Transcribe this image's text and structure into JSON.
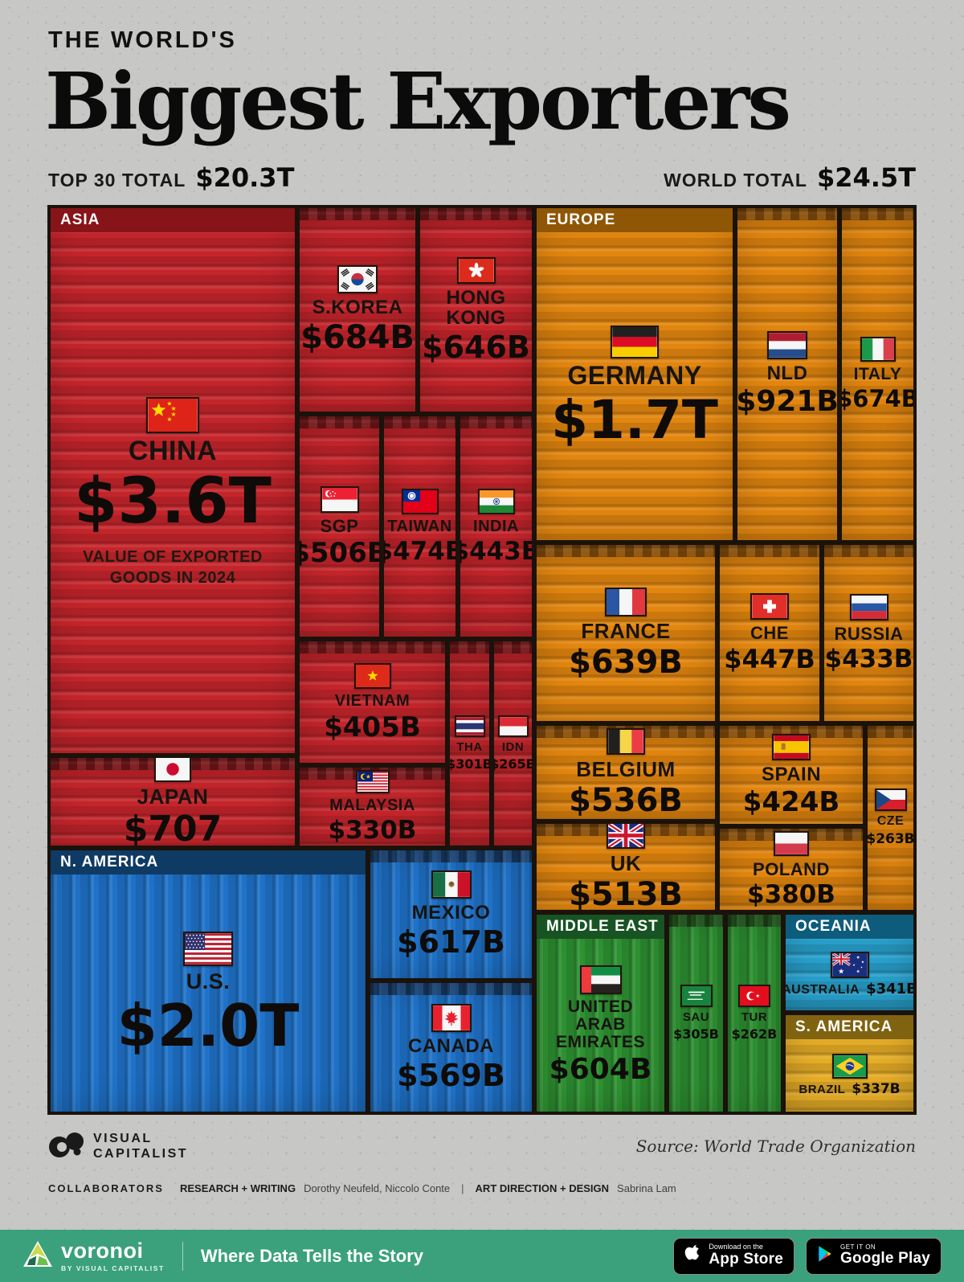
{
  "header": {
    "kicker": "THE WORLD'S",
    "title": "Biggest Exporters",
    "left_stat_label": "TOP 30 TOTAL",
    "left_stat_value": "$20.3T",
    "right_stat_label": "WORLD TOTAL",
    "right_stat_value": "$24.5T"
  },
  "regions": [
    {
      "id": "asia",
      "label": "ASIA",
      "countries": [
        {
          "id": "china",
          "label": "CHINA",
          "value": "$3.6T",
          "note": "VALUE OF EXPORTED GOODS IN 2024",
          "flag": "china"
        },
        {
          "id": "skorea",
          "label": "S.KOREA",
          "value": "$684B",
          "flag": "south-korea"
        },
        {
          "id": "hongkong",
          "label": "HONG KONG",
          "value": "$646B",
          "flag": "hong-kong"
        },
        {
          "id": "sgp",
          "label": "SGP",
          "value": "$506B",
          "flag": "singapore"
        },
        {
          "id": "taiwan",
          "label": "TAIWAN",
          "value": "$474B",
          "flag": "taiwan"
        },
        {
          "id": "india",
          "label": "INDIA",
          "value": "$443B",
          "flag": "india"
        },
        {
          "id": "vietnam",
          "label": "VIETNAM",
          "value": "$405B",
          "flag": "vietnam"
        },
        {
          "id": "malaysia",
          "label": "MALAYSIA",
          "value": "$330B",
          "flag": "malaysia"
        },
        {
          "id": "tha",
          "label": "THA",
          "value": "$301B",
          "flag": "thailand"
        },
        {
          "id": "idn",
          "label": "IDN",
          "value": "$265B",
          "flag": "indonesia"
        },
        {
          "id": "japan",
          "label": "JAPAN",
          "value": "$707",
          "flag": "japan"
        }
      ]
    },
    {
      "id": "europe",
      "label": "EUROPE",
      "countries": [
        {
          "id": "germany",
          "label": "GERMANY",
          "value": "$1.7T",
          "flag": "germany"
        },
        {
          "id": "nld",
          "label": "NLD",
          "value": "$921B",
          "flag": "netherlands"
        },
        {
          "id": "italy",
          "label": "ITALY",
          "value": "$674B",
          "flag": "italy"
        },
        {
          "id": "france",
          "label": "FRANCE",
          "value": "$639B",
          "flag": "france"
        },
        {
          "id": "che",
          "label": "CHE",
          "value": "$447B",
          "flag": "switzerland"
        },
        {
          "id": "russia",
          "label": "RUSSIA",
          "value": "$433B",
          "flag": "russia"
        },
        {
          "id": "belgium",
          "label": "BELGIUM",
          "value": "$536B",
          "flag": "belgium"
        },
        {
          "id": "spain",
          "label": "SPAIN",
          "value": "$424B",
          "flag": "spain"
        },
        {
          "id": "uk",
          "label": "UK",
          "value": "$513B",
          "flag": "uk"
        },
        {
          "id": "poland",
          "label": "POLAND",
          "value": "$380B",
          "flag": "poland"
        },
        {
          "id": "cze",
          "label": "CZE",
          "value": "$263B",
          "flag": "czechia"
        }
      ]
    },
    {
      "id": "namerica",
      "label": "N. AMERICA",
      "countries": [
        {
          "id": "us",
          "label": "U.S.",
          "value": "$2.0T",
          "flag": "usa"
        },
        {
          "id": "mexico",
          "label": "MEXICO",
          "value": "$617B",
          "flag": "mexico"
        },
        {
          "id": "canada",
          "label": "CANADA",
          "value": "$569B",
          "flag": "canada"
        }
      ]
    },
    {
      "id": "mideast",
      "label": "MIDDLE EAST",
      "countries": [
        {
          "id": "uae",
          "label": "UNITED ARAB EMIRATES",
          "value": "$604B",
          "flag": "uae"
        },
        {
          "id": "sau",
          "label": "SAU",
          "value": "$305B",
          "flag": "saudi-arabia"
        },
        {
          "id": "tur",
          "label": "TUR",
          "value": "$262B",
          "flag": "turkey"
        }
      ]
    },
    {
      "id": "oceania",
      "label": "OCEANIA",
      "countries": [
        {
          "id": "australia",
          "label": "AUSTRALIA",
          "value": "$341B",
          "flag": "australia"
        }
      ]
    },
    {
      "id": "samerica",
      "label": "S. AMERICA",
      "countries": [
        {
          "id": "brazil",
          "label": "BRAZIL",
          "value": "$337B",
          "flag": "brazil"
        }
      ]
    }
  ],
  "footer": {
    "brand_line1": "VISUAL",
    "brand_line2": "CAPITALIST",
    "source": "Source: World Trade Organization",
    "collab_label": "COLLABORATORS",
    "rw_label": "RESEARCH + WRITING",
    "rw_names": "Dorothy Neufeld, Niccolo Conte",
    "sep": "|",
    "ad_label": "ART DIRECTION + DESIGN",
    "ad_names": "Sabrina Lam"
  },
  "appbar": {
    "brand": "voronoi",
    "brand_sub": "BY VISUAL CAPITALIST",
    "tagline": "Where Data Tells the Story",
    "appstore_line1": "Download on the",
    "appstore_line2": "App Store",
    "gplay_line1": "GET IT ON",
    "gplay_line2": "Google Play"
  },
  "colors": {
    "asia": "#c4252b",
    "europe": "#e2860f",
    "n_america": "#1f72c8",
    "middle_east": "#2e9232",
    "oceania": "#28a0cc",
    "s_america": "#e6ad27",
    "appbar_green": "#3aa17c",
    "background": "#c7c7c5"
  },
  "chart_data": {
    "type": "treemap",
    "title": "The World's Biggest Exporters",
    "subtitle": "Value of exported goods in 2024",
    "unit": "USD billions",
    "totals": {
      "top_30_total": "$20.3T",
      "world_total": "$24.5T"
    },
    "source": "World Trade Organization",
    "groups": [
      {
        "region": "Asia",
        "items": [
          {
            "name": "China",
            "value": 3600,
            "label": "$3.6T"
          },
          {
            "name": "Japan",
            "value": 707,
            "label": "$707"
          },
          {
            "name": "South Korea",
            "value": 684,
            "label": "$684B"
          },
          {
            "name": "Hong Kong",
            "value": 646,
            "label": "$646B"
          },
          {
            "name": "Singapore",
            "value": 506,
            "label": "$506B"
          },
          {
            "name": "Taiwan",
            "value": 474,
            "label": "$474B"
          },
          {
            "name": "India",
            "value": 443,
            "label": "$443B"
          },
          {
            "name": "Vietnam",
            "value": 405,
            "label": "$405B"
          },
          {
            "name": "Malaysia",
            "value": 330,
            "label": "$330B"
          },
          {
            "name": "Thailand",
            "value": 301,
            "label": "$301B"
          },
          {
            "name": "Indonesia",
            "value": 265,
            "label": "$265B"
          }
        ]
      },
      {
        "region": "Europe",
        "items": [
          {
            "name": "Germany",
            "value": 1700,
            "label": "$1.7T"
          },
          {
            "name": "Netherlands",
            "value": 921,
            "label": "$921B"
          },
          {
            "name": "Italy",
            "value": 674,
            "label": "$674B"
          },
          {
            "name": "France",
            "value": 639,
            "label": "$639B"
          },
          {
            "name": "Belgium",
            "value": 536,
            "label": "$536B"
          },
          {
            "name": "UK",
            "value": 513,
            "label": "$513B"
          },
          {
            "name": "Switzerland",
            "value": 447,
            "label": "$447B"
          },
          {
            "name": "Russia",
            "value": 433,
            "label": "$433B"
          },
          {
            "name": "Spain",
            "value": 424,
            "label": "$424B"
          },
          {
            "name": "Poland",
            "value": 380,
            "label": "$380B"
          },
          {
            "name": "Czechia",
            "value": 263,
            "label": "$263B"
          }
        ]
      },
      {
        "region": "North America",
        "items": [
          {
            "name": "United States",
            "value": 2000,
            "label": "$2.0T"
          },
          {
            "name": "Mexico",
            "value": 617,
            "label": "$617B"
          },
          {
            "name": "Canada",
            "value": 569,
            "label": "$569B"
          }
        ]
      },
      {
        "region": "Middle East",
        "items": [
          {
            "name": "United Arab Emirates",
            "value": 604,
            "label": "$604B"
          },
          {
            "name": "Saudi Arabia",
            "value": 305,
            "label": "$305B"
          },
          {
            "name": "Turkey",
            "value": 262,
            "label": "$262B"
          }
        ]
      },
      {
        "region": "Oceania",
        "items": [
          {
            "name": "Australia",
            "value": 341,
            "label": "$341B"
          }
        ]
      },
      {
        "region": "South America",
        "items": [
          {
            "name": "Brazil",
            "value": 337,
            "label": "$337B"
          }
        ]
      }
    ]
  }
}
